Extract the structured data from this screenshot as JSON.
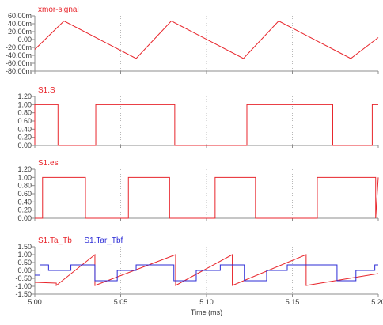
{
  "chart_data": [
    {
      "type": "line",
      "series": [
        {
          "name": "xmor-signal",
          "color": "#e8262c",
          "x": [
            5.0,
            5.017,
            5.059,
            5.0795,
            5.1215,
            5.142,
            5.184,
            5.2
          ],
          "y": [
            -0.025,
            0.047,
            -0.048,
            0.047,
            -0.048,
            0.047,
            -0.048,
            0.005
          ]
        }
      ],
      "ylim": [
        -0.08,
        0.06
      ],
      "yticks": [
        "60.00m",
        "40.00m",
        "20.00m",
        "0.00",
        "-20.00m",
        "-40.00m",
        "-60.00m",
        "-80.00m"
      ],
      "ytick_values": [
        0.06,
        0.04,
        0.02,
        0.0,
        -0.02,
        -0.04,
        -0.06,
        -0.08
      ]
    },
    {
      "type": "line",
      "series": [
        {
          "name": "S1.S",
          "color": "#e8262c",
          "x": [
            5.0,
            5.0,
            5.0135,
            5.0135,
            5.0355,
            5.0355,
            5.0815,
            5.0815,
            5.1235,
            5.1235,
            5.1735,
            5.1735,
            5.1965,
            5.1965,
            5.2
          ],
          "y": [
            0,
            1,
            1,
            0,
            0,
            1,
            1,
            0,
            0,
            1,
            1,
            0,
            0,
            1,
            1
          ]
        }
      ],
      "ylim": [
        0,
        1.2
      ],
      "yticks": [
        "1.20",
        "1.00",
        "0.80",
        "0.60",
        "0.40",
        "0.20",
        "0.00"
      ],
      "ytick_values": [
        1.2,
        1.0,
        0.8,
        0.6,
        0.4,
        0.2,
        0.0
      ]
    },
    {
      "type": "line",
      "series": [
        {
          "name": "S1.es",
          "color": "#e8262c",
          "x": [
            5.0,
            5.0045,
            5.0045,
            5.0295,
            5.0295,
            5.0545,
            5.0545,
            5.0785,
            5.0785,
            5.105,
            5.105,
            5.1285,
            5.1285,
            5.1645,
            5.1645,
            5.1985,
            5.1985,
            5.2
          ],
          "y": [
            0,
            0,
            1,
            1,
            0,
            0,
            1,
            1,
            0,
            0,
            1,
            1,
            0,
            0,
            1,
            1,
            0,
            1
          ]
        }
      ],
      "ylim": [
        0,
        1.2
      ],
      "yticks": [
        "1.20",
        "1.00",
        "0.80",
        "0.60",
        "0.40",
        "0.20",
        "0.00"
      ],
      "ytick_values": [
        1.2,
        1.0,
        0.8,
        0.6,
        0.4,
        0.2,
        0.0
      ]
    },
    {
      "type": "line",
      "series": [
        {
          "name": "S1.Ta_Tb",
          "color": "#e8262c",
          "x": [
            5.0,
            5.0125,
            5.0125,
            5.035,
            5.035,
            5.082,
            5.082,
            5.115,
            5.115,
            5.158,
            5.158,
            5.2
          ],
          "y": [
            -0.75,
            -0.8,
            -0.95,
            1.0,
            -0.95,
            1.0,
            -0.95,
            1.0,
            -0.95,
            1.0,
            -0.95,
            -0.2
          ]
        },
        {
          "name": "S1.Tar_Tbf",
          "color": "#2b2bd6",
          "x": [
            5.0,
            5.003,
            5.003,
            5.008,
            5.008,
            5.021,
            5.021,
            5.035,
            5.035,
            5.048,
            5.048,
            5.059,
            5.059,
            5.081,
            5.081,
            5.094,
            5.094,
            5.108,
            5.108,
            5.122,
            5.122,
            5.135,
            5.135,
            5.147,
            5.147,
            5.176,
            5.176,
            5.187,
            5.187,
            5.198,
            5.198,
            5.2
          ],
          "y": [
            -0.3,
            -0.3,
            0.35,
            0.35,
            0.0,
            0.0,
            0.35,
            0.35,
            -0.65,
            -0.65,
            0.0,
            0.0,
            0.35,
            0.35,
            -0.65,
            -0.65,
            0.0,
            0.0,
            0.35,
            0.35,
            -0.65,
            -0.65,
            0.0,
            0.0,
            0.35,
            0.35,
            -0.65,
            -0.65,
            0.0,
            0.0,
            0.35,
            0.35
          ]
        }
      ],
      "ylim": [
        -1.5,
        1.5
      ],
      "yticks": [
        "1.50",
        "1.00",
        "0.50",
        "0.00",
        "-0.50",
        "-1.00",
        "-1.50"
      ],
      "ytick_values": [
        1.5,
        1.0,
        0.5,
        0.0,
        -0.5,
        -1.0,
        -1.5
      ]
    }
  ],
  "x_axis": {
    "xlim": [
      5.0,
      5.2
    ],
    "ticks": [
      "5.00",
      "5.05",
      "5.10",
      "5.15",
      "5.20"
    ],
    "tick_values": [
      5.0,
      5.05,
      5.1,
      5.15,
      5.2
    ],
    "label": "Time (ms)"
  },
  "grid": "dotted vertical",
  "colors": {
    "axis": "#8c8c8c",
    "grid": "#b8b8b8",
    "tick_label": "#333333"
  }
}
